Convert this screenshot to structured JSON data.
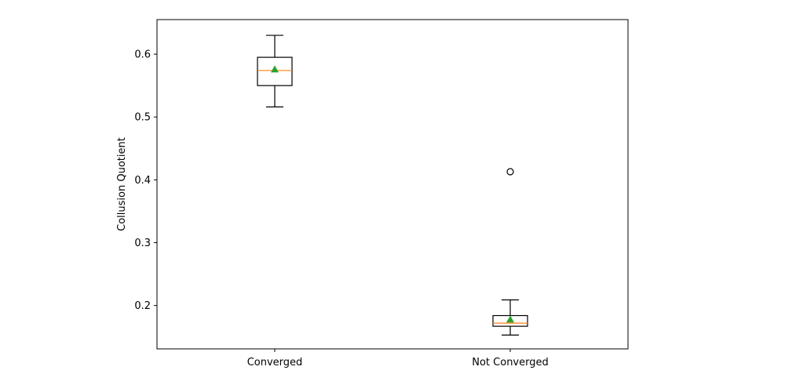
{
  "chart_data": {
    "type": "boxplot",
    "title": "",
    "xlabel": "",
    "ylabel": "Collusion Quotient",
    "ylim": [
      0.131,
      0.655
    ],
    "yticks": [
      0.2,
      0.3,
      0.4,
      0.5,
      0.6
    ],
    "ytick_labels": [
      "0.2",
      "0.3",
      "0.4",
      "0.5",
      "0.6"
    ],
    "grid": false,
    "categories": [
      "Converged",
      "Not Converged"
    ],
    "boxes": [
      {
        "category": "Converged",
        "whisker_low": 0.516,
        "q1": 0.55,
        "median": 0.574,
        "q3": 0.595,
        "whisker_high": 0.63,
        "mean": 0.576,
        "outliers": []
      },
      {
        "category": "Not Converged",
        "whisker_low": 0.153,
        "q1": 0.167,
        "median": 0.172,
        "q3": 0.184,
        "whisker_high": 0.209,
        "mean": 0.178,
        "outliers": [
          0.413
        ]
      }
    ],
    "colors": {
      "box": "#000000",
      "median": "#ff7f0e",
      "mean": "#2ca02c",
      "outlier": "#000000"
    }
  }
}
